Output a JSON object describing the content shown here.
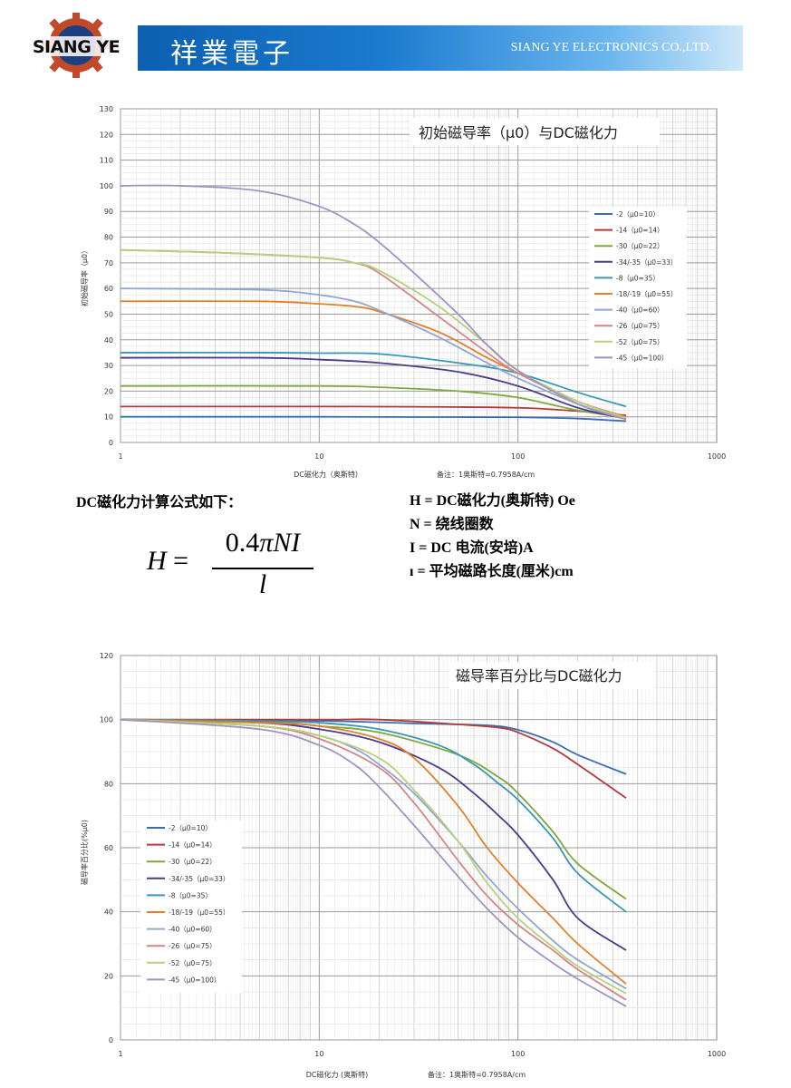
{
  "header": {
    "logo_text": "SIANG YE",
    "company_cn": "祥業電子",
    "company_en": "SIANG YE ELECTRONICS CO.,LTD.",
    "colors": {
      "banner": "#1a72c8",
      "logo_bg": "#1c3f80",
      "logo_gear": "#c14a2a"
    }
  },
  "chart1": {
    "title": "初始磁导率（μ0）与DC磁化力",
    "xlabel": "DC磁化力（奥斯特）",
    "ylabel": "初始磁导率（μ0）",
    "note": "备注：1奥斯特=0.7958A/cm"
  },
  "chart2": {
    "title": "磁导率百分比与DC磁化力",
    "xlabel": "DC磁化力 (奥斯特)",
    "ylabel": "磁导率百分比(%μ0)",
    "note": "备注：1奥斯特=0.7958A/cm"
  },
  "chart_data": [
    {
      "type": "line",
      "title": "初始磁导率（μ0）与DC磁化力",
      "xlabel": "DC磁化力（奥斯特）",
      "ylabel": "初始磁导率（μ0）",
      "xscale": "log",
      "xlim": [
        1,
        1000
      ],
      "ylim": [
        0,
        130
      ],
      "xticks": [
        "1",
        "10",
        "100",
        "1000"
      ],
      "yticks": [
        "0",
        "10",
        "20",
        "30",
        "40",
        "50",
        "60",
        "70",
        "80",
        "90",
        "100",
        "110",
        "120",
        "130"
      ],
      "grid": true,
      "legend": "right",
      "series": [
        {
          "name": "-2（μ0=10）",
          "color": "#3a6db5",
          "points": [
            [
              1,
              10
            ],
            [
              10,
              10
            ],
            [
              30,
              9.9
            ],
            [
              100,
              9.8
            ],
            [
              200,
              9.3
            ],
            [
              350,
              8.3
            ]
          ]
        },
        {
          "name": "-14（μ0=14）",
          "color": "#b33a3a",
          "points": [
            [
              1,
              14
            ],
            [
              10,
              14
            ],
            [
              30,
              13.9
            ],
            [
              100,
              13.5
            ],
            [
              200,
              12.2
            ],
            [
              350,
              10.6
            ]
          ]
        },
        {
          "name": "-30（μ0=22）",
          "color": "#7ea83b",
          "points": [
            [
              1,
              22
            ],
            [
              10,
              22
            ],
            [
              20,
              21.5
            ],
            [
              50,
              20
            ],
            [
              100,
              17.5
            ],
            [
              200,
              12.5
            ],
            [
              350,
              9.7
            ]
          ]
        },
        {
          "name": "-34/-35（μ0=33）",
          "color": "#4b3b8a",
          "points": [
            [
              1,
              33
            ],
            [
              5,
              33
            ],
            [
              10,
              32.3
            ],
            [
              20,
              31
            ],
            [
              50,
              27.5
            ],
            [
              100,
              22
            ],
            [
              200,
              13.5
            ],
            [
              350,
              9.2
            ]
          ]
        },
        {
          "name": "-8（μ0=35）",
          "color": "#3797b6",
          "points": [
            [
              1,
              35
            ],
            [
              5,
              35
            ],
            [
              10,
              34.8
            ],
            [
              20,
              34.5
            ],
            [
              50,
              31
            ],
            [
              100,
              27
            ],
            [
              200,
              19.5
            ],
            [
              350,
              14
            ]
          ]
        },
        {
          "name": "-18/-19（μ0=55）",
          "color": "#e47f29",
          "points": [
            [
              1,
              55
            ],
            [
              5,
              55
            ],
            [
              10,
              54
            ],
            [
              15,
              53
            ],
            [
              20,
              51
            ],
            [
              40,
              43
            ],
            [
              70,
              33
            ],
            [
              100,
              27
            ],
            [
              200,
              16
            ],
            [
              350,
              10
            ]
          ]
        },
        {
          "name": "-40（μ0=60）",
          "color": "#8fa6d0",
          "points": [
            [
              1,
              60
            ],
            [
              5,
              59.5
            ],
            [
              10,
              57.5
            ],
            [
              15,
              55
            ],
            [
              20,
              51.5
            ],
            [
              40,
              41
            ],
            [
              70,
              31
            ],
            [
              100,
              25
            ],
            [
              200,
              15
            ],
            [
              350,
              9
            ]
          ]
        },
        {
          "name": "-26（μ0=75）",
          "color": "#d48686",
          "points": [
            [
              1,
              75
            ],
            [
              3,
              74
            ],
            [
              10,
              72
            ],
            [
              15,
              70
            ],
            [
              20,
              66
            ],
            [
              40,
              49
            ],
            [
              70,
              35
            ],
            [
              100,
              27
            ],
            [
              200,
              16
            ],
            [
              350,
              9.5
            ]
          ]
        },
        {
          "name": "-52（μ0=75）",
          "color": "#b7d07a",
          "points": [
            [
              1,
              75
            ],
            [
              3,
              74
            ],
            [
              10,
              72
            ],
            [
              15,
              70
            ],
            [
              20,
              67
            ],
            [
              40,
              53
            ],
            [
              70,
              38
            ],
            [
              100,
              28
            ],
            [
              200,
              16
            ],
            [
              350,
              9.5
            ]
          ]
        },
        {
          "name": "-45（μ0=100）",
          "color": "#9f93c2",
          "points": [
            [
              1,
              100
            ],
            [
              2,
              100
            ],
            [
              5,
              98
            ],
            [
              10,
              92
            ],
            [
              15,
              85
            ],
            [
              20,
              78
            ],
            [
              30,
              66
            ],
            [
              50,
              50
            ],
            [
              70,
              38
            ],
            [
              100,
              28
            ],
            [
              200,
              15
            ],
            [
              350,
              9
            ]
          ]
        }
      ]
    },
    {
      "type": "line",
      "title": "磁导率百分比与DC磁化力",
      "xlabel": "DC磁化力 (奥斯特)",
      "ylabel": "磁导率百分比(%μ0)",
      "xscale": "log",
      "xlim": [
        1,
        1000
      ],
      "ylim": [
        0,
        120
      ],
      "xticks": [
        "1",
        "10",
        "100",
        "1000"
      ],
      "yticks": [
        "0",
        "20",
        "40",
        "60",
        "80",
        "100",
        "120"
      ],
      "grid": true,
      "legend": "left",
      "series": [
        {
          "name": "-2（μ0=10）",
          "color": "#3a6db5",
          "points": [
            [
              1,
              100
            ],
            [
              10,
              99.6
            ],
            [
              30,
              98.8
            ],
            [
              70,
              98.2
            ],
            [
              100,
              96.8
            ],
            [
              150,
              93
            ],
            [
              200,
              89
            ],
            [
              350,
              83
            ]
          ]
        },
        {
          "name": "-14（μ0=14）",
          "color": "#b33a3a",
          "points": [
            [
              1,
              100
            ],
            [
              10,
              100
            ],
            [
              20,
              100
            ],
            [
              50,
              98.5
            ],
            [
              80,
              97.5
            ],
            [
              100,
              96
            ],
            [
              150,
              91
            ],
            [
              200,
              86
            ],
            [
              350,
              75.5
            ]
          ]
        },
        {
          "name": "-30（μ0=22）",
          "color": "#7ea83b",
          "points": [
            [
              1,
              100
            ],
            [
              5,
              99.5
            ],
            [
              10,
              98
            ],
            [
              20,
              96
            ],
            [
              50,
              89
            ],
            [
              80,
              82
            ],
            [
              100,
              77
            ],
            [
              150,
              65
            ],
            [
              200,
              55
            ],
            [
              350,
              44
            ]
          ]
        },
        {
          "name": "-34/-35（μ0=33）",
          "color": "#4b3b8a",
          "points": [
            [
              1,
              100
            ],
            [
              5,
              99
            ],
            [
              10,
              97
            ],
            [
              20,
              93
            ],
            [
              40,
              85
            ],
            [
              60,
              77
            ],
            [
              80,
              70
            ],
            [
              100,
              64
            ],
            [
              150,
              50
            ],
            [
              200,
              38
            ],
            [
              350,
              28
            ]
          ]
        },
        {
          "name": "-8（μ0=35）",
          "color": "#3797b6",
          "points": [
            [
              1,
              100
            ],
            [
              5,
              99.5
            ],
            [
              10,
              99
            ],
            [
              20,
              97
            ],
            [
              40,
              92
            ],
            [
              60,
              86
            ],
            [
              80,
              80
            ],
            [
              100,
              75
            ],
            [
              150,
              63
            ],
            [
              200,
              52
            ],
            [
              350,
              40
            ]
          ]
        },
        {
          "name": "-18/-19（μ0=55）",
          "color": "#e47f29",
          "points": [
            [
              1,
              100
            ],
            [
              5,
              99
            ],
            [
              10,
              98
            ],
            [
              20,
              94
            ],
            [
              30,
              88
            ],
            [
              50,
              73
            ],
            [
              70,
              60
            ],
            [
              100,
              49
            ],
            [
              150,
              38
            ],
            [
              200,
              30
            ],
            [
              350,
              17.5
            ]
          ]
        },
        {
          "name": "-40（μ0=60）",
          "color": "#8fa6d0",
          "points": [
            [
              1,
              100
            ],
            [
              5,
              98
            ],
            [
              10,
              95
            ],
            [
              15,
              91
            ],
            [
              20,
              86
            ],
            [
              30,
              77
            ],
            [
              50,
              62
            ],
            [
              70,
              51
            ],
            [
              100,
              41
            ],
            [
              150,
              31
            ],
            [
              200,
              25
            ],
            [
              350,
              16
            ]
          ]
        },
        {
          "name": "-26（μ0=75）",
          "color": "#d48686",
          "points": [
            [
              1,
              100
            ],
            [
              5,
              98
            ],
            [
              10,
              94
            ],
            [
              20,
              85
            ],
            [
              30,
              74
            ],
            [
              50,
              56
            ],
            [
              70,
              45
            ],
            [
              100,
              36
            ],
            [
              150,
              28
            ],
            [
              200,
              22
            ],
            [
              350,
              12.5
            ]
          ]
        },
        {
          "name": "-52（μ0=75）",
          "color": "#b7d07a",
          "points": [
            [
              1,
              100
            ],
            [
              5,
              98
            ],
            [
              10,
              95
            ],
            [
              20,
              88
            ],
            [
              30,
              78
            ],
            [
              50,
              62
            ],
            [
              70,
              49
            ],
            [
              100,
              38
            ],
            [
              150,
              29
            ],
            [
              200,
              23
            ],
            [
              350,
              14.5
            ]
          ]
        },
        {
          "name": "-45（μ0=100）",
          "color": "#9f93c2",
          "points": [
            [
              1,
              100
            ],
            [
              5,
              97
            ],
            [
              10,
              92
            ],
            [
              15,
              86
            ],
            [
              20,
              79
            ],
            [
              30,
              67
            ],
            [
              50,
              51
            ],
            [
              70,
              41
            ],
            [
              100,
              32
            ],
            [
              150,
              24
            ],
            [
              200,
              19
            ],
            [
              350,
              10.5
            ]
          ]
        }
      ]
    }
  ],
  "formula": {
    "title": "DC磁化力计算公式如下：",
    "lhs": "H",
    "eq": "=",
    "numerator_const": "0.4",
    "numerator_vars": "πNI",
    "denominator": "l",
    "definitions": [
      "H = DC磁化力(奥斯特) Oe",
      "N = 绕线圈数",
      "I = DC 电流(安培)A",
      "ı = 平均磁路长度(厘米)cm"
    ]
  }
}
